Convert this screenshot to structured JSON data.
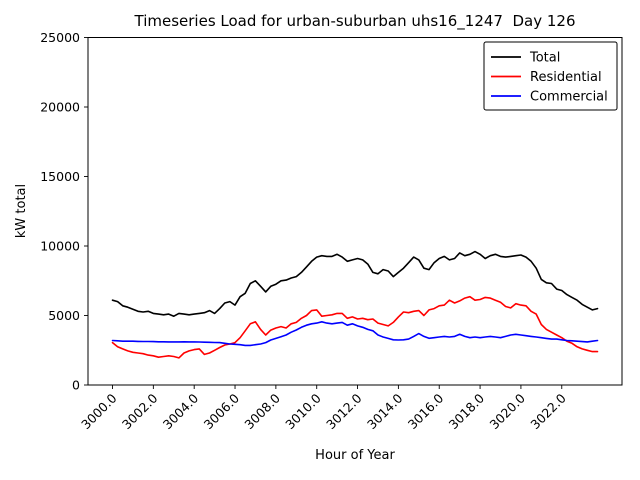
{
  "chart_data": {
    "type": "line",
    "title": "Timeseries Load for urban-suburban uhs16_1247  Day 126",
    "xlabel": "Hour of Year",
    "ylabel": "kW total",
    "xlim": [
      2998.8,
      3024.95
    ],
    "ylim": [
      0,
      25000
    ],
    "grid": false,
    "x_ticks": [
      3000,
      3002,
      3004,
      3006,
      3008,
      3010,
      3012,
      3014,
      3016,
      3018,
      3020,
      3022
    ],
    "x_tick_labels": [
      "3000.0",
      "3002.0",
      "3004.0",
      "3006.0",
      "3008.0",
      "3010.0",
      "3012.0",
      "3014.0",
      "3016.0",
      "3018.0",
      "3020.0",
      "3022.0"
    ],
    "y_ticks": [
      0,
      5000,
      10000,
      15000,
      20000,
      25000
    ],
    "y_tick_labels": [
      "0",
      "5000",
      "10000",
      "15000",
      "20000",
      "25000"
    ],
    "x_start": 3000.0,
    "x_step": 0.25,
    "legend": {
      "position": "upper-right",
      "entries": [
        {
          "label": "Total",
          "color": "#000000"
        },
        {
          "label": "Residential",
          "color": "#ff0000"
        },
        {
          "label": "Commercial",
          "color": "#0000ff"
        }
      ]
    },
    "series": [
      {
        "name": "Total",
        "color": "#000000",
        "values": [
          6100,
          6000,
          5700,
          5600,
          5450,
          5300,
          5250,
          5300,
          5150,
          5100,
          5050,
          5100,
          4950,
          5150,
          5100,
          5050,
          5100,
          5150,
          5200,
          5350,
          5150,
          5500,
          5900,
          6000,
          5750,
          6350,
          6600,
          7300,
          7500,
          7100,
          6700,
          7100,
          7250,
          7500,
          7550,
          7700,
          7800,
          8100,
          8500,
          8900,
          9200,
          9300,
          9250,
          9250,
          9400,
          9200,
          8900,
          9000,
          9100,
          9000,
          8700,
          8100,
          8000,
          8300,
          8200,
          7800,
          8100,
          8400,
          8800,
          9200,
          9000,
          8400,
          8300,
          8800,
          9100,
          9250,
          9000,
          9100,
          9500,
          9300,
          9400,
          9600,
          9400,
          9100,
          9300,
          9400,
          9250,
          9200,
          9250,
          9300,
          9350,
          9200,
          8900,
          8400,
          7600,
          7350,
          7300,
          6900,
          6800,
          6500,
          6300,
          6100,
          5800,
          5600,
          5400,
          5500
        ]
      },
      {
        "name": "Residential",
        "color": "#ff0000",
        "values": [
          3050,
          2750,
          2600,
          2450,
          2350,
          2300,
          2250,
          2150,
          2100,
          2000,
          2050,
          2100,
          2050,
          1950,
          2300,
          2450,
          2550,
          2600,
          2200,
          2300,
          2500,
          2700,
          2880,
          2950,
          3050,
          3400,
          3900,
          4400,
          4550,
          4000,
          3600,
          3950,
          4100,
          4200,
          4100,
          4400,
          4500,
          4800,
          5000,
          5350,
          5400,
          4950,
          5000,
          5050,
          5150,
          5150,
          4800,
          4900,
          4750,
          4800,
          4700,
          4750,
          4450,
          4350,
          4250,
          4500,
          4900,
          5250,
          5200,
          5300,
          5350,
          5000,
          5400,
          5500,
          5700,
          5750,
          6100,
          5900,
          6050,
          6250,
          6350,
          6100,
          6150,
          6300,
          6250,
          6100,
          5950,
          5650,
          5550,
          5850,
          5750,
          5700,
          5300,
          5100,
          4350,
          4000,
          3800,
          3600,
          3400,
          3150,
          3000,
          2750,
          2600,
          2500,
          2400,
          2400
        ]
      },
      {
        "name": "Commercial",
        "color": "#0000ff",
        "values": [
          3200,
          3180,
          3150,
          3150,
          3150,
          3140,
          3130,
          3130,
          3120,
          3110,
          3110,
          3100,
          3100,
          3100,
          3110,
          3100,
          3100,
          3090,
          3080,
          3070,
          3060,
          3050,
          3000,
          2950,
          2930,
          2900,
          2850,
          2850,
          2900,
          2950,
          3050,
          3235,
          3350,
          3475,
          3600,
          3800,
          3960,
          4150,
          4300,
          4400,
          4450,
          4550,
          4450,
          4400,
          4450,
          4500,
          4300,
          4400,
          4250,
          4150,
          4000,
          3900,
          3600,
          3450,
          3350,
          3250,
          3235,
          3250,
          3300,
          3500,
          3700,
          3500,
          3360,
          3400,
          3450,
          3500,
          3450,
          3500,
          3650,
          3500,
          3400,
          3450,
          3400,
          3450,
          3500,
          3450,
          3400,
          3500,
          3600,
          3650,
          3600,
          3550,
          3500,
          3450,
          3400,
          3350,
          3300,
          3300,
          3250,
          3200,
          3180,
          3150,
          3120,
          3100,
          3150,
          3200
        ]
      }
    ]
  }
}
